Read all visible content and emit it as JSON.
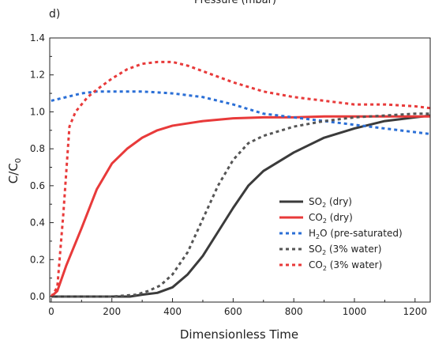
{
  "panel_label": "d)",
  "top_clipped_text": "Pressure (mbar)",
  "chart_data": {
    "type": "line",
    "xlabel": "Dimensionless Time",
    "ylabel_main": "C/C",
    "ylabel_sub": "0",
    "xlim": [
      -5,
      1250
    ],
    "ylim": [
      -0.03,
      1.4
    ],
    "xticks": [
      0,
      200,
      400,
      600,
      800,
      1000,
      1200
    ],
    "yticks": [
      0.0,
      0.2,
      0.4,
      0.6,
      0.8,
      1.0,
      1.2,
      1.4
    ],
    "ytick_labels": [
      "0.0",
      "0.2",
      "0.4",
      "0.6",
      "0.8",
      "1.0",
      "1.2",
      "1.4"
    ],
    "legend_position": "center-right",
    "series": [
      {
        "name_main": "SO",
        "name_sub": "2",
        "name_rest": " (dry)",
        "color": "#3b3b3b",
        "dash": "solid",
        "x": [
          0,
          100,
          200,
          260,
          300,
          350,
          400,
          450,
          500,
          550,
          600,
          650,
          700,
          800,
          900,
          1000,
          1100,
          1200,
          1250
        ],
        "y": [
          0.0,
          0.0,
          0.0,
          0.0,
          0.01,
          0.02,
          0.05,
          0.12,
          0.22,
          0.35,
          0.48,
          0.6,
          0.68,
          0.78,
          0.86,
          0.91,
          0.95,
          0.97,
          0.98
        ]
      },
      {
        "name_main": "CO",
        "name_sub": "2",
        "name_rest": " (dry)",
        "color": "#e83a3a",
        "dash": "solid",
        "x": [
          0,
          20,
          50,
          100,
          150,
          200,
          250,
          300,
          350,
          400,
          500,
          600,
          700,
          800,
          900,
          1000,
          1100,
          1200,
          1250
        ],
        "y": [
          0.0,
          0.03,
          0.17,
          0.37,
          0.58,
          0.72,
          0.8,
          0.86,
          0.9,
          0.925,
          0.95,
          0.965,
          0.97,
          0.97,
          0.975,
          0.975,
          0.975,
          0.975,
          0.975
        ]
      },
      {
        "name_main": "H",
        "name_sub": "2",
        "name_rest": "O (pre-saturated)",
        "color": "#2b6fd6",
        "dash": "dotted",
        "x": [
          0,
          50,
          100,
          150,
          200,
          300,
          400,
          500,
          600,
          700,
          800,
          900,
          1000,
          1100,
          1200,
          1250
        ],
        "y": [
          1.06,
          1.08,
          1.1,
          1.11,
          1.11,
          1.11,
          1.1,
          1.08,
          1.04,
          0.99,
          0.97,
          0.95,
          0.93,
          0.91,
          0.89,
          0.88
        ]
      },
      {
        "name_main": "SO",
        "name_sub": "2",
        "name_rest": " (3% water)",
        "color": "#555555",
        "dash": "dotted",
        "x": [
          0,
          100,
          200,
          280,
          320,
          360,
          400,
          450,
          500,
          550,
          600,
          650,
          700,
          800,
          900,
          1000,
          1100,
          1200,
          1250
        ],
        "y": [
          0.0,
          0.0,
          0.0,
          0.01,
          0.03,
          0.06,
          0.12,
          0.24,
          0.42,
          0.6,
          0.74,
          0.83,
          0.87,
          0.92,
          0.95,
          0.97,
          0.98,
          0.99,
          0.99
        ]
      },
      {
        "name_main": "CO",
        "name_sub": "2",
        "name_rest": " (3% water)",
        "color": "#e83a3a",
        "dash": "dotted",
        "x": [
          0,
          20,
          40,
          60,
          80,
          120,
          150,
          200,
          250,
          300,
          350,
          400,
          450,
          500,
          600,
          700,
          800,
          900,
          1000,
          1100,
          1200,
          1250
        ],
        "y": [
          0.0,
          0.05,
          0.45,
          0.92,
          1.0,
          1.08,
          1.12,
          1.18,
          1.23,
          1.26,
          1.27,
          1.27,
          1.25,
          1.22,
          1.16,
          1.11,
          1.08,
          1.06,
          1.04,
          1.04,
          1.03,
          1.02
        ]
      }
    ]
  }
}
